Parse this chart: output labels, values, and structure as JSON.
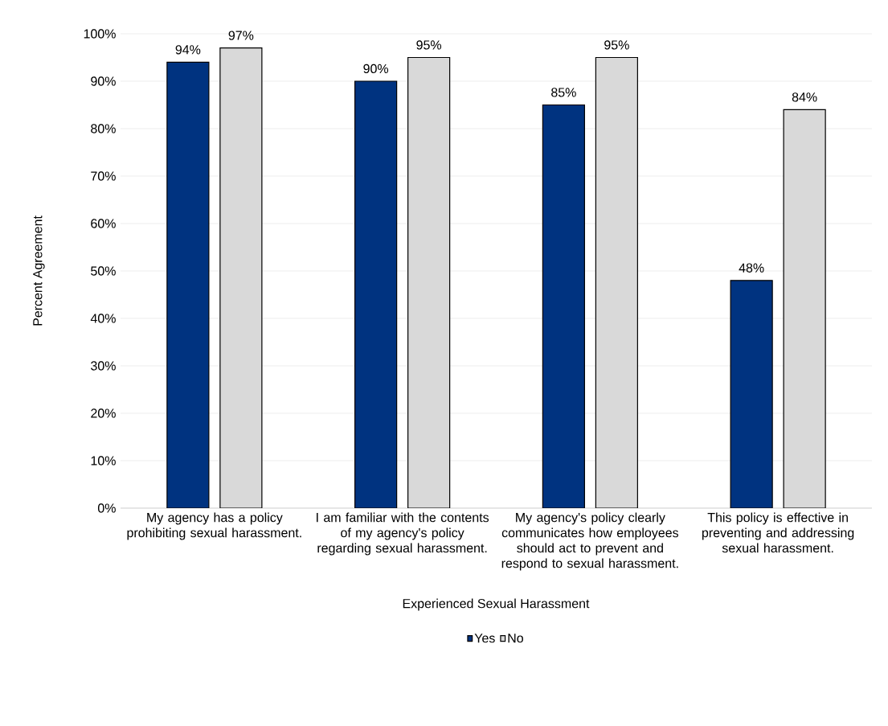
{
  "chart_data": {
    "type": "bar",
    "categories": [
      "My agency has a policy prohibiting sexual harassment.",
      "I am familiar with the contents of my agency's policy regarding sexual harassment.",
      "My agency's policy clearly communicates how employees should act to prevent and respond to sexual harassment.",
      "This policy is effective in preventing and addressing sexual harassment."
    ],
    "series": [
      {
        "name": "Yes",
        "color": "#003380",
        "values": [
          94,
          90,
          85,
          48
        ],
        "value_labels": [
          "94%",
          "90%",
          "85%",
          "48%"
        ]
      },
      {
        "name": "No",
        "color": "#d9d9d9",
        "values": [
          97,
          95,
          95,
          84
        ],
        "value_labels": [
          "97%",
          "95%",
          "95%",
          "84%"
        ]
      }
    ],
    "ylabel": "Percent Agreement",
    "legend_title": "Experienced Sexual Harassment",
    "ylim": [
      0,
      100
    ],
    "yticks": [
      {
        "value": 0,
        "label": "0%"
      },
      {
        "value": 10,
        "label": "10%"
      },
      {
        "value": 20,
        "label": "20%"
      },
      {
        "value": 30,
        "label": "30%"
      },
      {
        "value": 40,
        "label": "40%"
      },
      {
        "value": 50,
        "label": "50%"
      },
      {
        "value": 60,
        "label": "60%"
      },
      {
        "value": 70,
        "label": "70%"
      },
      {
        "value": 80,
        "label": "80%"
      },
      {
        "value": 90,
        "label": "90%"
      },
      {
        "value": 100,
        "label": "100%"
      }
    ],
    "grid": "y",
    "legend": "bottom"
  }
}
